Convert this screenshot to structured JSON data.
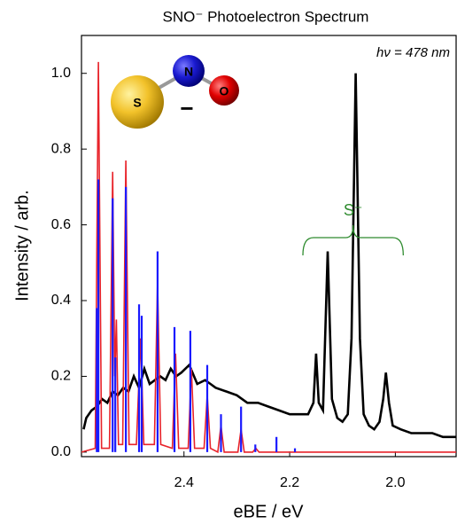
{
  "chart_data": {
    "type": "line",
    "title": "SNO⁻ Photoelectron Spectrum",
    "x_label": "eBE / eV",
    "y_label": "Intensity / arb.",
    "xlim": [
      2.594,
      1.885
    ],
    "ylim": [
      -0.012,
      1.1
    ],
    "xticks": [
      2.4,
      2.2,
      {
        "value": 2.0,
        "label": "2.0"
      }
    ],
    "yticks": [
      {
        "value": 0.0,
        "label": "0.0"
      },
      0.2,
      0.4,
      0.6,
      0.8,
      {
        "value": 1.0,
        "label": "1.0"
      }
    ],
    "series": [
      {
        "style": "line",
        "color": "#000000",
        "x": [
          2.59,
          2.585,
          2.575,
          2.565,
          2.555,
          2.545,
          2.535,
          2.525,
          2.515,
          2.505,
          2.495,
          2.485,
          2.475,
          2.465,
          2.455,
          2.445,
          2.435,
          2.425,
          2.415,
          2.405,
          2.39,
          2.375,
          2.36,
          2.35,
          2.34,
          2.32,
          2.3,
          2.28,
          2.26,
          2.24,
          2.22,
          2.2,
          2.18,
          2.165,
          2.155,
          2.15,
          2.145,
          2.137,
          2.128,
          2.12,
          2.11,
          2.1,
          2.09,
          2.083,
          2.075,
          2.067,
          2.06,
          2.05,
          2.04,
          2.03,
          2.023,
          2.018,
          2.012,
          2.005,
          1.99,
          1.97,
          1.95,
          1.93,
          1.91,
          1.885
        ],
        "values": [
          0.06,
          0.09,
          0.11,
          0.12,
          0.14,
          0.13,
          0.16,
          0.15,
          0.17,
          0.16,
          0.2,
          0.17,
          0.22,
          0.18,
          0.19,
          0.2,
          0.19,
          0.22,
          0.2,
          0.21,
          0.23,
          0.18,
          0.19,
          0.18,
          0.17,
          0.16,
          0.15,
          0.13,
          0.13,
          0.12,
          0.11,
          0.1,
          0.1,
          0.1,
          0.13,
          0.26,
          0.13,
          0.11,
          0.53,
          0.14,
          0.09,
          0.08,
          0.1,
          0.3,
          1.0,
          0.3,
          0.1,
          0.07,
          0.06,
          0.08,
          0.14,
          0.21,
          0.13,
          0.07,
          0.06,
          0.05,
          0.05,
          0.05,
          0.04,
          0.04
        ]
      },
      {
        "style": "line",
        "color": "#e8232a",
        "x": [
          2.594,
          2.568,
          2.562,
          2.556,
          2.541,
          2.535,
          2.531,
          2.528,
          2.524,
          2.516,
          2.51,
          2.504,
          2.49,
          2.482,
          2.476,
          2.456,
          2.45,
          2.444,
          2.422,
          2.416,
          2.41,
          2.392,
          2.386,
          2.38,
          2.362,
          2.356,
          2.35,
          2.336,
          2.33,
          2.324,
          2.298,
          2.292,
          2.286,
          2.27,
          2.264,
          2.258,
          1.885
        ],
        "values": [
          0,
          0.01,
          1.03,
          0.01,
          0.01,
          0.74,
          0.2,
          0.35,
          0.02,
          0.02,
          0.77,
          0.02,
          0.02,
          0.3,
          0.02,
          0.02,
          0.45,
          0.02,
          0.01,
          0.26,
          0.01,
          0.01,
          0.22,
          0.01,
          0.01,
          0.15,
          0.01,
          0.0,
          0.07,
          0.0,
          0.0,
          0.06,
          0.0,
          0.0,
          0.01,
          0.0,
          0.0
        ]
      },
      {
        "style": "stem",
        "color": "#1a1aff",
        "x": [
          2.565,
          2.562,
          2.535,
          2.53,
          2.51,
          2.485,
          2.48,
          2.45,
          2.418,
          2.388,
          2.356,
          2.33,
          2.292,
          2.265,
          2.225,
          2.19
        ],
        "values": [
          0.38,
          0.72,
          0.67,
          0.25,
          0.7,
          0.39,
          0.36,
          0.53,
          0.33,
          0.32,
          0.23,
          0.1,
          0.12,
          0.02,
          0.04,
          0.01
        ]
      }
    ],
    "annotations": {
      "photon": "hν = 478 nm",
      "bracket_label": "S⁻",
      "bracket_color": "#2e8b2e",
      "bracket_span": [
        2.175,
        1.985
      ]
    },
    "molecule": {
      "atoms": [
        "S",
        "N",
        "O"
      ],
      "charge": "−"
    }
  }
}
